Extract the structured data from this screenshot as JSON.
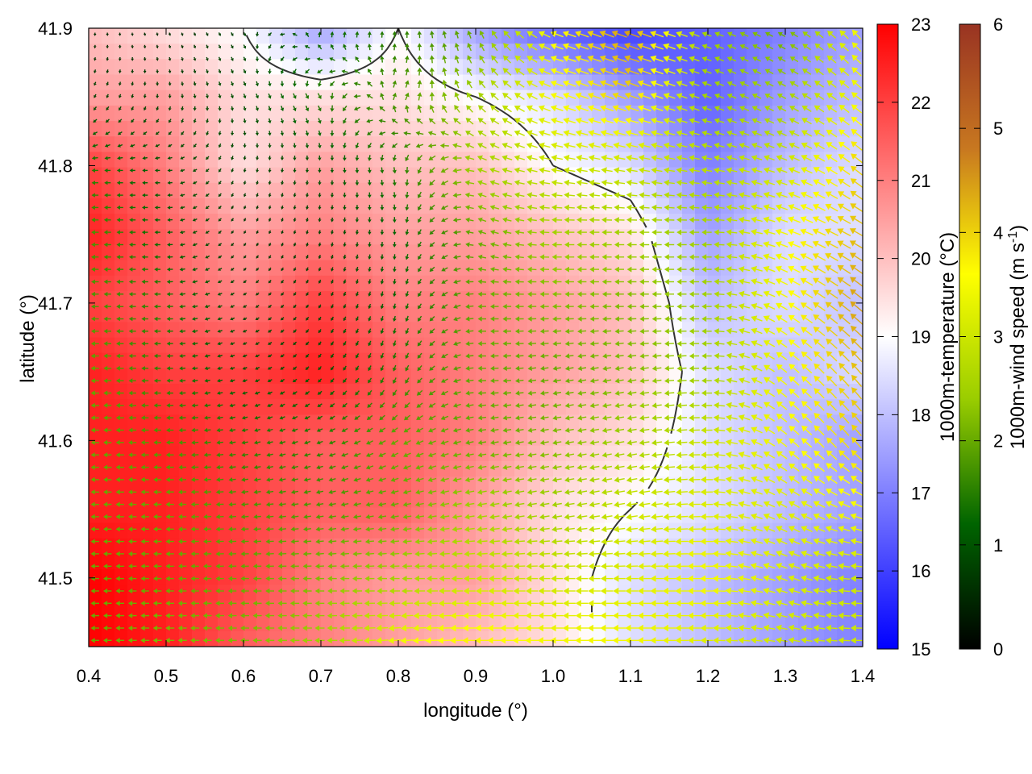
{
  "chart_data": {
    "type": "heatmap",
    "title": "",
    "xlabel": "longitude (°)",
    "ylabel": "latitude (°)",
    "xlim": [
      0.4,
      1.4
    ],
    "ylim": [
      41.45,
      41.9
    ],
    "x_ticks": [
      "0.4",
      "0.5",
      "0.6",
      "0.7",
      "0.8",
      "0.9",
      "1.0",
      "1.1",
      "1.2",
      "1.3",
      "1.4"
    ],
    "y_ticks": [
      "41.5",
      "41.6",
      "41.7",
      "41.8",
      "41.9"
    ],
    "x_tick_values": [
      0.4,
      0.5,
      0.6,
      0.7,
      0.8,
      0.9,
      1.0,
      1.1,
      1.2,
      1.3,
      1.4
    ],
    "y_tick_values": [
      41.5,
      41.6,
      41.7,
      41.8,
      41.9
    ],
    "temperature_colorbar": {
      "label": "1000m-temperature (°C)",
      "range": [
        15,
        23
      ],
      "ticks": [
        "15",
        "16",
        "17",
        "18",
        "19",
        "20",
        "21",
        "22",
        "23"
      ],
      "colors": [
        "#0000ff",
        "#ffffff",
        "#ff0000"
      ]
    },
    "wind_colorbar": {
      "label_main": "1000m-wind speed (m s",
      "label_sup": "-1",
      "label_end": ")",
      "range": [
        0,
        6
      ],
      "ticks": [
        "0",
        "1",
        "2",
        "3",
        "4",
        "5",
        "6"
      ],
      "colors": [
        "#000000",
        "#006400",
        "#9acd00",
        "#ffff00",
        "#c87820",
        "#993322"
      ]
    },
    "temperature_field": {
      "lon": [
        0.4,
        0.5,
        0.6,
        0.7,
        0.8,
        0.9,
        1.0,
        1.1,
        1.2,
        1.3,
        1.4
      ],
      "lat": [
        41.9,
        41.85,
        41.8,
        41.75,
        41.7,
        41.65,
        41.6,
        41.55,
        41.5,
        41.45
      ],
      "values": [
        [
          20.0,
          19.5,
          19.0,
          17.5,
          19.0,
          17.5,
          16.5,
          16.0,
          16.5,
          17.0,
          17.5
        ],
        [
          20.5,
          20.5,
          19.5,
          19.5,
          19.5,
          19.0,
          18.5,
          17.5,
          16.5,
          17.5,
          18.0
        ],
        [
          22.0,
          21.0,
          19.5,
          20.5,
          20.0,
          20.0,
          19.0,
          18.5,
          17.0,
          18.0,
          18.5
        ],
        [
          22.5,
          21.5,
          20.5,
          21.0,
          20.5,
          20.5,
          20.0,
          19.5,
          17.5,
          18.5,
          18.5
        ],
        [
          22.0,
          21.5,
          21.0,
          22.0,
          21.0,
          21.0,
          20.5,
          20.0,
          18.0,
          18.5,
          18.0
        ],
        [
          22.5,
          22.0,
          22.0,
          22.5,
          21.5,
          21.0,
          20.5,
          20.0,
          18.5,
          18.0,
          18.5
        ],
        [
          22.5,
          22.5,
          22.0,
          21.5,
          21.5,
          21.0,
          20.0,
          19.5,
          18.5,
          18.0,
          17.5
        ],
        [
          22.5,
          22.5,
          22.0,
          21.5,
          21.5,
          20.5,
          19.5,
          19.0,
          18.5,
          18.0,
          17.5
        ],
        [
          23.0,
          22.5,
          22.0,
          21.0,
          20.5,
          20.5,
          19.5,
          18.5,
          18.0,
          17.5,
          17.0
        ],
        [
          23.0,
          22.5,
          21.5,
          21.0,
          20.5,
          20.0,
          19.5,
          18.5,
          18.0,
          17.5,
          17.0
        ]
      ]
    },
    "wind_field": {
      "lon": [
        0.4,
        0.5,
        0.6,
        0.7,
        0.8,
        0.9,
        1.0,
        1.1,
        1.2,
        1.3,
        1.4
      ],
      "lat": [
        41.9,
        41.85,
        41.8,
        41.75,
        41.7,
        41.65,
        41.6,
        41.55,
        41.5,
        41.45
      ],
      "speed": [
        [
          0.5,
          0.5,
          0.8,
          1.2,
          1.5,
          2.0,
          3.5,
          4.5,
          2.5,
          2.0,
          3.5
        ],
        [
          0.8,
          0.8,
          1.0,
          1.5,
          1.8,
          2.5,
          3.5,
          4.0,
          2.5,
          2.5,
          3.5
        ],
        [
          1.5,
          1.0,
          0.8,
          1.0,
          1.5,
          2.5,
          3.0,
          3.0,
          2.8,
          3.0,
          4.0
        ],
        [
          1.8,
          1.2,
          0.6,
          0.8,
          1.2,
          2.0,
          2.5,
          2.5,
          2.5,
          3.5,
          4.2
        ],
        [
          1.8,
          1.5,
          0.8,
          0.8,
          1.2,
          2.0,
          2.2,
          2.2,
          2.5,
          3.5,
          4.5
        ],
        [
          2.0,
          1.5,
          1.0,
          1.0,
          1.5,
          2.0,
          2.0,
          2.2,
          2.5,
          3.5,
          4.2
        ],
        [
          2.0,
          1.8,
          1.5,
          1.5,
          2.0,
          2.0,
          2.2,
          2.5,
          3.0,
          3.5,
          4.0
        ],
        [
          2.0,
          2.0,
          1.8,
          1.8,
          2.0,
          2.5,
          2.5,
          3.0,
          3.2,
          3.2,
          3.5
        ],
        [
          2.0,
          2.0,
          2.0,
          2.2,
          2.5,
          3.0,
          3.0,
          3.2,
          3.5,
          3.2,
          3.0
        ],
        [
          2.0,
          2.2,
          2.2,
          2.5,
          3.5,
          3.8,
          3.5,
          3.5,
          3.2,
          3.0,
          3.0
        ]
      ],
      "direction_deg": [
        [
          90,
          70,
          60,
          300,
          270,
          250,
          200,
          200,
          200,
          210,
          230
        ],
        [
          120,
          90,
          70,
          60,
          300,
          230,
          200,
          200,
          200,
          210,
          220
        ],
        [
          180,
          180,
          100,
          90,
          80,
          200,
          190,
          190,
          190,
          200,
          220
        ],
        [
          180,
          180,
          120,
          100,
          90,
          200,
          180,
          180,
          180,
          200,
          210
        ],
        [
          180,
          180,
          150,
          120,
          100,
          180,
          180,
          180,
          180,
          210,
          220
        ],
        [
          180,
          180,
          160,
          130,
          110,
          180,
          170,
          170,
          180,
          220,
          230
        ],
        [
          180,
          180,
          170,
          160,
          150,
          170,
          170,
          170,
          180,
          220,
          230
        ],
        [
          180,
          180,
          175,
          170,
          170,
          170,
          170,
          170,
          180,
          210,
          200
        ],
        [
          180,
          180,
          180,
          180,
          180,
          180,
          180,
          180,
          180,
          200,
          180
        ],
        [
          180,
          180,
          180,
          180,
          175,
          180,
          180,
          180,
          180,
          190,
          180
        ]
      ]
    }
  }
}
